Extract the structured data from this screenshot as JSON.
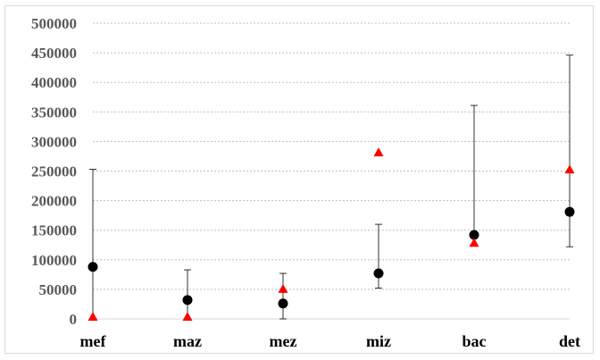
{
  "chart_data": {
    "type": "scatter",
    "title": "",
    "xlabel": "",
    "ylabel": "",
    "categories": [
      "mef",
      "maz",
      "mez",
      "miz",
      "bac",
      "det"
    ],
    "ylim": [
      0,
      500000
    ],
    "y_ticks": [
      0,
      50000,
      100000,
      150000,
      200000,
      250000,
      300000,
      350000,
      400000,
      450000,
      500000
    ],
    "y_tick_labels": [
      "0",
      "50000",
      "100000",
      "150000",
      "200000",
      "250000",
      "300000",
      "350000",
      "400000",
      "450000",
      "500000"
    ],
    "grid": true,
    "legend": "none",
    "series": [
      {
        "marker": "circle",
        "color": "#000000",
        "values": [
          88000,
          32000,
          26000,
          77000,
          142000,
          181000
        ],
        "error_low": [
          0,
          0,
          0,
          52000,
          null,
          122000
        ],
        "error_high": [
          253000,
          83000,
          77000,
          160000,
          361000,
          446000
        ]
      },
      {
        "marker": "triangle",
        "color": "#ff0000",
        "values": [
          3000,
          3000,
          50000,
          281000,
          128000,
          252000
        ]
      }
    ]
  }
}
